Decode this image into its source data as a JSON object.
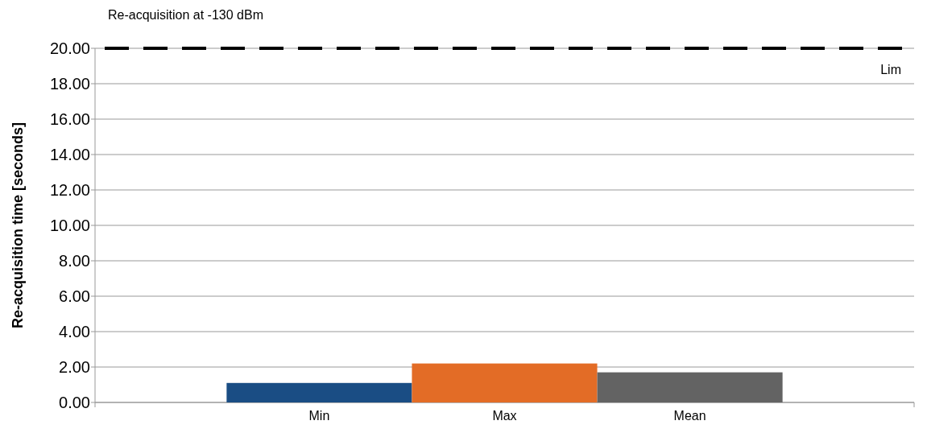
{
  "chart_data": {
    "type": "bar",
    "title": "Re-acquisition at -130 dBm",
    "ylabel": "Re-acquisition time [seconds]",
    "categories": [
      "Min",
      "Max",
      "Mean"
    ],
    "values": [
      1.1,
      2.2,
      1.7
    ],
    "colors": [
      "#1a4d84",
      "#e36c26",
      "#636363"
    ],
    "ylim": [
      0,
      20
    ],
    "yticks": [
      {
        "value": 0,
        "label": "0.00"
      },
      {
        "value": 2,
        "label": "2.00"
      },
      {
        "value": 4,
        "label": "4.00"
      },
      {
        "value": 6,
        "label": "6.00"
      },
      {
        "value": 8,
        "label": "8.00"
      },
      {
        "value": 10,
        "label": "10.00"
      },
      {
        "value": 12,
        "label": "12.00"
      },
      {
        "value": 14,
        "label": "14.00"
      },
      {
        "value": 16,
        "label": "16.00"
      },
      {
        "value": 18,
        "label": "18.00"
      },
      {
        "value": 20,
        "label": "20.00"
      }
    ],
    "ref_lines": [
      {
        "axis": "y",
        "value": 20,
        "label": "Lim",
        "color": "#000000",
        "line_style": "dashed"
      }
    ],
    "grid": "y"
  }
}
